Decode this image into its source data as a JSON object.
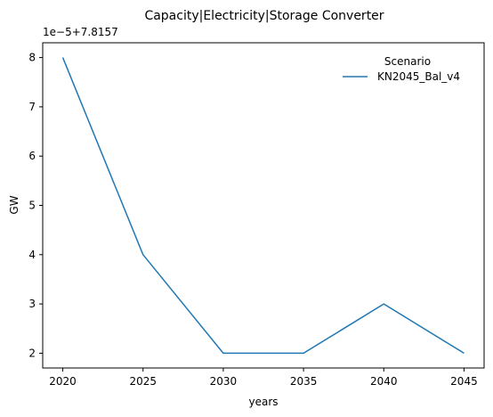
{
  "chart_data": {
    "type": "line",
    "title": "Capacity|Electricity|Storage Converter",
    "xlabel": "years",
    "ylabel": "GW",
    "offset_label": "1e−5+7.8157",
    "x": [
      2020,
      2025,
      2030,
      2035,
      2040,
      2045
    ],
    "x_ticks": [
      "2020",
      "2025",
      "2030",
      "2035",
      "2040",
      "2045"
    ],
    "y_ticks": [
      "2",
      "3",
      "4",
      "5",
      "6",
      "7",
      "8"
    ],
    "ylim": [
      1.7,
      8.3
    ],
    "xlim": [
      2018.75,
      2046.25
    ],
    "series": [
      {
        "name": "KN2045_Bal_v4",
        "values": [
          8,
          4,
          2,
          2,
          3,
          2
        ],
        "color": "#1f77b4"
      }
    ],
    "legend": {
      "title": "Scenario",
      "position": "top-right"
    },
    "grid": false
  }
}
